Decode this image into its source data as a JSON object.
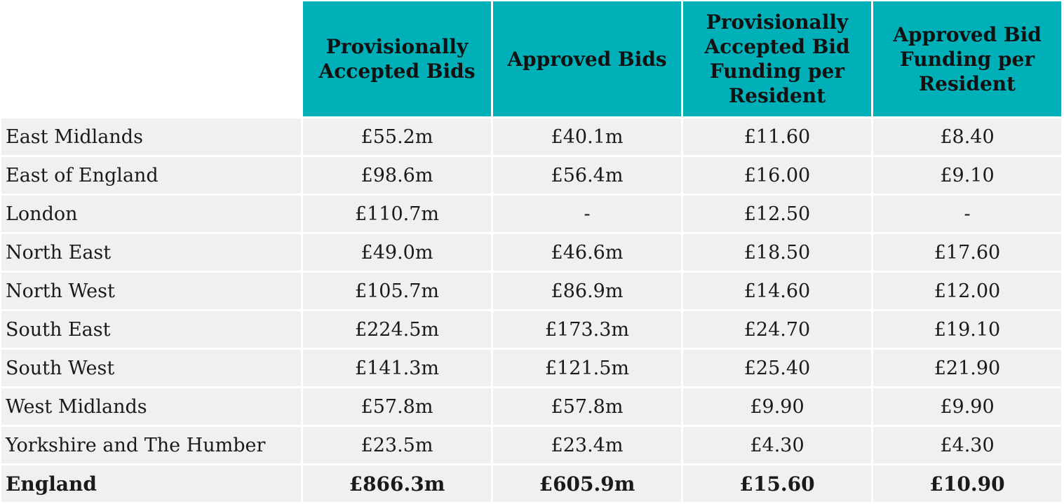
{
  "headers": [
    "",
    "Provisionally Accepted Bids",
    "Approved Bids",
    "Provisionally Accepted Bid Funding per Resident",
    "Approved Bid Funding per Resident"
  ],
  "rows": [
    [
      "East Midlands",
      "£55.2m",
      "£40.1m",
      "£11.60",
      "£8.40"
    ],
    [
      "East of England",
      "£98.6m",
      "£56.4m",
      "£16.00",
      "£9.10"
    ],
    [
      "London",
      "£110.7m",
      "-",
      "£12.50",
      "-"
    ],
    [
      "North East",
      "£49.0m",
      "£46.6m",
      "£18.50",
      "£17.60"
    ],
    [
      "North West",
      "£105.7m",
      "£86.9m",
      "£14.60",
      "£12.00"
    ],
    [
      "South East",
      "£224.5m",
      "£173.3m",
      "£24.70",
      "£19.10"
    ],
    [
      "South West",
      "£141.3m",
      "£121.5m",
      "£25.40",
      "£21.90"
    ],
    [
      "West Midlands",
      "£57.8m",
      "£57.8m",
      "£9.90",
      "£9.90"
    ],
    [
      "Yorkshire and The Humber",
      "£23.5m",
      "£23.4m",
      "£4.30",
      "£4.30"
    ]
  ],
  "total": [
    "England",
    "£866.3m",
    "£605.9m",
    "£15.60",
    "£10.90"
  ],
  "colors": {
    "header_bg": "#00b0b9",
    "cell_bg": "#f0f0f0"
  }
}
